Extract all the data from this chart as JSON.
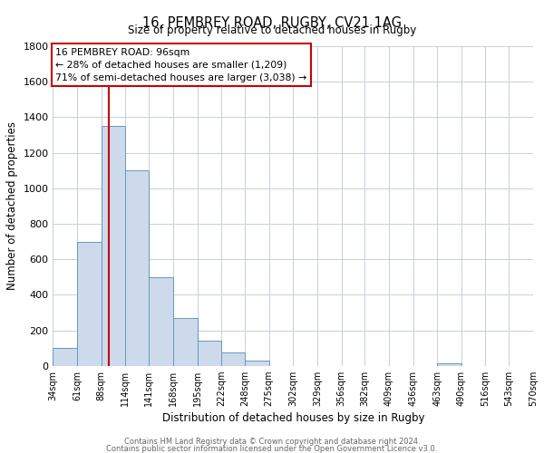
{
  "title": "16, PEMBREY ROAD, RUGBY, CV21 1AG",
  "subtitle": "Size of property relative to detached houses in Rugby",
  "xlabel": "Distribution of detached houses by size in Rugby",
  "ylabel": "Number of detached properties",
  "bar_color": "#ccdaec",
  "bar_edge_color": "#6699bb",
  "bin_edges": [
    34,
    61,
    88,
    114,
    141,
    168,
    195,
    222,
    248,
    275,
    302,
    329,
    356,
    382,
    409,
    436,
    463,
    490,
    516,
    543,
    570
  ],
  "bar_heights": [
    100,
    700,
    1350,
    1100,
    500,
    270,
    140,
    75,
    30,
    0,
    0,
    0,
    0,
    0,
    0,
    0,
    15,
    0,
    0,
    0
  ],
  "tick_labels": [
    "34sqm",
    "61sqm",
    "88sqm",
    "114sqm",
    "141sqm",
    "168sqm",
    "195sqm",
    "222sqm",
    "248sqm",
    "275sqm",
    "302sqm",
    "329sqm",
    "356sqm",
    "382sqm",
    "409sqm",
    "436sqm",
    "463sqm",
    "490sqm",
    "516sqm",
    "543sqm",
    "570sqm"
  ],
  "ylim": [
    0,
    1800
  ],
  "yticks": [
    0,
    200,
    400,
    600,
    800,
    1000,
    1200,
    1400,
    1600,
    1800
  ],
  "vline_x": 96,
  "vline_color": "#cc0000",
  "annotation_line1": "16 PEMBREY ROAD: 96sqm",
  "annotation_line2": "← 28% of detached houses are smaller (1,209)",
  "annotation_line3": "71% of semi-detached houses are larger (3,038) →",
  "footer_line1": "Contains HM Land Registry data © Crown copyright and database right 2024.",
  "footer_line2": "Contains public sector information licensed under the Open Government Licence v3.0.",
  "background_color": "#ffffff",
  "grid_color": "#c5cfe0"
}
